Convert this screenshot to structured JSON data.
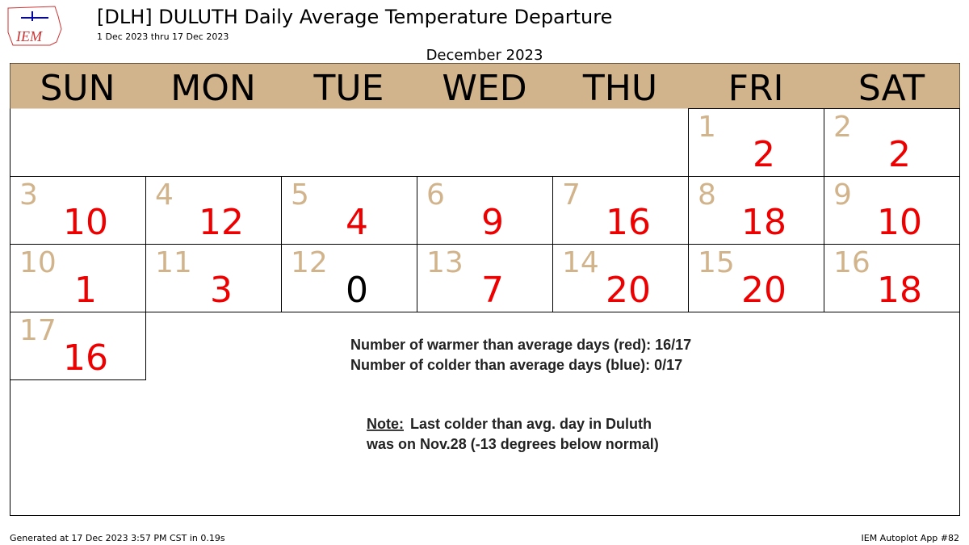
{
  "header": {
    "title": "[DLH] DULUTH Daily Average Temperature Departure",
    "subtitle": "1 Dec 2023 thru 17 Dec 2023",
    "logo": "IEM"
  },
  "calendar": {
    "month": "December 2023",
    "header_color": "#d2b48c",
    "day_color": "#d2b48c",
    "weekdays": [
      "SUN",
      "MON",
      "TUE",
      "WED",
      "THU",
      "FRI",
      "SAT"
    ],
    "weeks": [
      [
        null,
        null,
        null,
        null,
        null,
        {
          "day": 1,
          "value": 2,
          "color": "#ee0000"
        },
        {
          "day": 2,
          "value": 2,
          "color": "#ee0000"
        }
      ],
      [
        {
          "day": 3,
          "value": 10,
          "color": "#ee0000"
        },
        {
          "day": 4,
          "value": 12,
          "color": "#ee0000"
        },
        {
          "day": 5,
          "value": 4,
          "color": "#ee0000"
        },
        {
          "day": 6,
          "value": 9,
          "color": "#ee0000"
        },
        {
          "day": 7,
          "value": 16,
          "color": "#ee0000"
        },
        {
          "day": 8,
          "value": 18,
          "color": "#ee0000"
        },
        {
          "day": 9,
          "value": 10,
          "color": "#ee0000"
        }
      ],
      [
        {
          "day": 10,
          "value": 1,
          "color": "#ee0000"
        },
        {
          "day": 11,
          "value": 3,
          "color": "#ee0000"
        },
        {
          "day": 12,
          "value": 0,
          "color": "#000000"
        },
        {
          "day": 13,
          "value": 7,
          "color": "#ee0000"
        },
        {
          "day": 14,
          "value": 20,
          "color": "#ee0000"
        },
        {
          "day": 15,
          "value": 20,
          "color": "#ee0000"
        },
        {
          "day": 16,
          "value": 18,
          "color": "#ee0000"
        }
      ],
      [
        {
          "day": 17,
          "value": 16,
          "color": "#ee0000"
        },
        null,
        null,
        null,
        null,
        null,
        null
      ]
    ]
  },
  "annotations": {
    "warmer": "Number of warmer than average days (red):  16/17",
    "colder": "Number of colder than average days (blue):  0/17",
    "note_label": "Note:",
    "note_line1": "Last colder than avg. day in Duluth",
    "note_line2": "was on Nov.28 (-13 degrees below normal)"
  },
  "footer": {
    "left": "Generated at 17 Dec 2023 3:57 PM CST in 0.19s",
    "right": "IEM Autoplot App #82"
  }
}
